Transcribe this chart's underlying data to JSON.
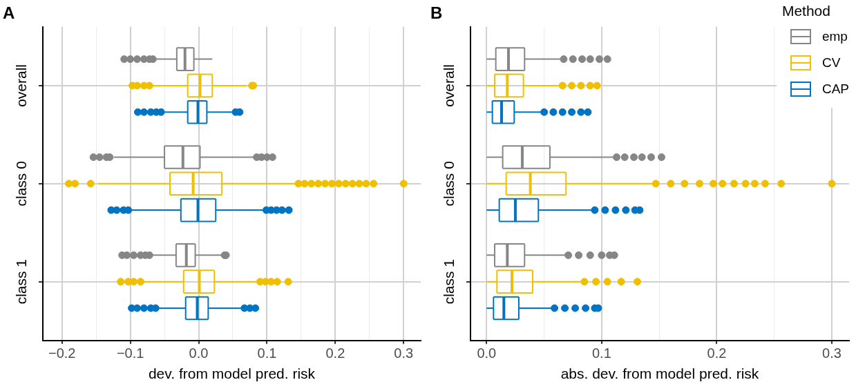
{
  "chart_data": [
    {
      "type": "box",
      "orientation": "horizontal",
      "title": "A",
      "xlabel": "dev. from model pred. risk",
      "categories": [
        "overall",
        "class 0",
        "class 1"
      ],
      "xlim": [
        -0.228,
        0.325
      ],
      "xticks": [
        {
          "value": -0.2,
          "label": "−0.2"
        },
        {
          "value": -0.15,
          "label": null
        },
        {
          "value": -0.1,
          "label": "−0.1"
        },
        {
          "value": -0.05,
          "label": null
        },
        {
          "value": 0,
          "label": "0.0"
        },
        {
          "value": 0.05,
          "label": null
        },
        {
          "value": 0.1,
          "label": "0.1"
        },
        {
          "value": 0.15,
          "label": null
        },
        {
          "value": 0.2,
          "label": "0.2"
        },
        {
          "value": 0.25,
          "label": null
        },
        {
          "value": 0.3,
          "label": "0.3"
        }
      ],
      "grid": true,
      "legend": false,
      "series": [
        {
          "color": "#868686",
          "boxes": [
            {
              "low": -0.067,
              "q1": -0.032,
              "median": -0.02,
              "q3": -0.007,
              "high": 0.02,
              "outliers": [
                -0.109,
                -0.1,
                -0.09,
                -0.08,
                -0.072,
                -0.067
              ]
            },
            {
              "low": -0.124,
              "q1": -0.05,
              "median": -0.023,
              "q3": 0.002,
              "high": 0.081,
              "outliers": [
                -0.154,
                -0.145,
                -0.135,
                -0.13,
                0.085,
                0.092,
                0.1,
                0.108
              ]
            },
            {
              "low": -0.07,
              "q1": -0.033,
              "median": -0.018,
              "q3": -0.005,
              "high": 0.034,
              "outliers": [
                -0.112,
                -0.105,
                -0.095,
                -0.085,
                -0.078,
                -0.072,
                0.038,
                0.04
              ]
            }
          ]
        },
        {
          "color": "#efc000",
          "boxes": [
            {
              "low": -0.069,
              "q1": -0.016,
              "median": 0.002,
              "q3": 0.02,
              "high": 0.07,
              "outliers": [
                -0.097,
                -0.09,
                -0.08,
                -0.072,
                0.078,
                0.08
              ]
            },
            {
              "low": -0.147,
              "q1": -0.042,
              "median": -0.008,
              "q3": 0.034,
              "high": 0.145,
              "outliers": [
                -0.19,
                -0.181,
                -0.158,
                0.146,
                0.155,
                0.165,
                0.175,
                0.185,
                0.195,
                0.205,
                0.215,
                0.225,
                0.235,
                0.245,
                0.256,
                0.3
              ]
            },
            {
              "low": -0.083,
              "q1": -0.022,
              "median": 0.001,
              "q3": 0.023,
              "high": 0.086,
              "outliers": [
                -0.114,
                -0.103,
                -0.095,
                -0.085,
                0.09,
                0.098,
                0.106,
                0.115,
                0.131
              ]
            }
          ]
        },
        {
          "color": "#0073c2",
          "boxes": [
            {
              "low": -0.052,
              "q1": -0.016,
              "median": -0.001,
              "q3": 0.012,
              "high": 0.052,
              "outliers": [
                -0.089,
                -0.08,
                -0.07,
                -0.062,
                -0.055,
                0.054,
                0.06
              ]
            },
            {
              "low": -0.101,
              "q1": -0.026,
              "median": -0.001,
              "q3": 0.025,
              "high": 0.097,
              "outliers": [
                -0.128,
                -0.12,
                -0.11,
                -0.103,
                0.099,
                0.106,
                0.114,
                0.122,
                0.132
              ]
            },
            {
              "low": -0.062,
              "q1": -0.019,
              "median": -0.002,
              "q3": 0.014,
              "high": 0.065,
              "outliers": [
                -0.098,
                -0.09,
                -0.08,
                -0.07,
                -0.063,
                0.067,
                0.075,
                0.083
              ]
            }
          ]
        }
      ]
    },
    {
      "type": "box",
      "orientation": "horizontal",
      "title": "B",
      "xlabel": "abs. dev. from model pred. risk",
      "categories": [
        "overall",
        "class 0",
        "class 1"
      ],
      "xlim": [
        -0.014,
        0.315
      ],
      "xticks": [
        {
          "value": 0,
          "label": "0.0"
        },
        {
          "value": 0.05,
          "label": null
        },
        {
          "value": 0.1,
          "label": "0.1"
        },
        {
          "value": 0.15,
          "label": null
        },
        {
          "value": 0.2,
          "label": "0.2"
        },
        {
          "value": 0.25,
          "label": null
        },
        {
          "value": 0.3,
          "label": "0.3"
        }
      ],
      "grid": true,
      "legend": "top right",
      "legend_title": "Method",
      "series": [
        {
          "name": "emp",
          "color": "#868686",
          "boxes": [
            {
              "low": 0,
              "q1": 0.008,
              "median": 0.019,
              "q3": 0.033,
              "high": 0.066,
              "outliers": [
                0.067,
                0.075,
                0.083,
                0.09,
                0.098,
                0.105
              ]
            },
            {
              "low": 0,
              "q1": 0.014,
              "median": 0.031,
              "q3": 0.055,
              "high": 0.113,
              "outliers": [
                0.113,
                0.12,
                0.128,
                0.135,
                0.143,
                0.152
              ]
            },
            {
              "low": 0,
              "q1": 0.007,
              "median": 0.018,
              "q3": 0.033,
              "high": 0.07,
              "outliers": [
                0.071,
                0.08,
                0.09,
                0.1,
                0.107,
                0.111
              ]
            }
          ]
        },
        {
          "name": "CV",
          "color": "#efc000",
          "boxes": [
            {
              "low": 0,
              "q1": 0.007,
              "median": 0.018,
              "q3": 0.032,
              "high": 0.065,
              "outliers": [
                0.066,
                0.074,
                0.082,
                0.09,
                0.096
              ]
            },
            {
              "low": 0,
              "q1": 0.017,
              "median": 0.038,
              "q3": 0.069,
              "high": 0.146,
              "outliers": [
                0.147,
                0.16,
                0.172,
                0.185,
                0.197,
                0.205,
                0.215,
                0.225,
                0.233,
                0.242,
                0.256,
                0.3
              ]
            },
            {
              "low": 0,
              "q1": 0.009,
              "median": 0.022,
              "q3": 0.04,
              "high": 0.084,
              "outliers": [
                0.085,
                0.095,
                0.105,
                0.117,
                0.131
              ]
            }
          ]
        },
        {
          "name": "CAP",
          "color": "#0073c2",
          "boxes": [
            {
              "low": 0,
              "q1": 0.005,
              "median": 0.013,
              "q3": 0.024,
              "high": 0.049,
              "outliers": [
                0.05,
                0.058,
                0.066,
                0.074,
                0.082,
                0.088
              ]
            },
            {
              "low": 0,
              "q1": 0.011,
              "median": 0.025,
              "q3": 0.045,
              "high": 0.093,
              "outliers": [
                0.094,
                0.103,
                0.112,
                0.121,
                0.129,
                0.133
              ]
            },
            {
              "low": 0,
              "q1": 0.006,
              "median": 0.015,
              "q3": 0.028,
              "high": 0.058,
              "outliers": [
                0.059,
                0.068,
                0.077,
                0.086,
                0.094,
                0.097
              ]
            }
          ]
        }
      ]
    }
  ]
}
